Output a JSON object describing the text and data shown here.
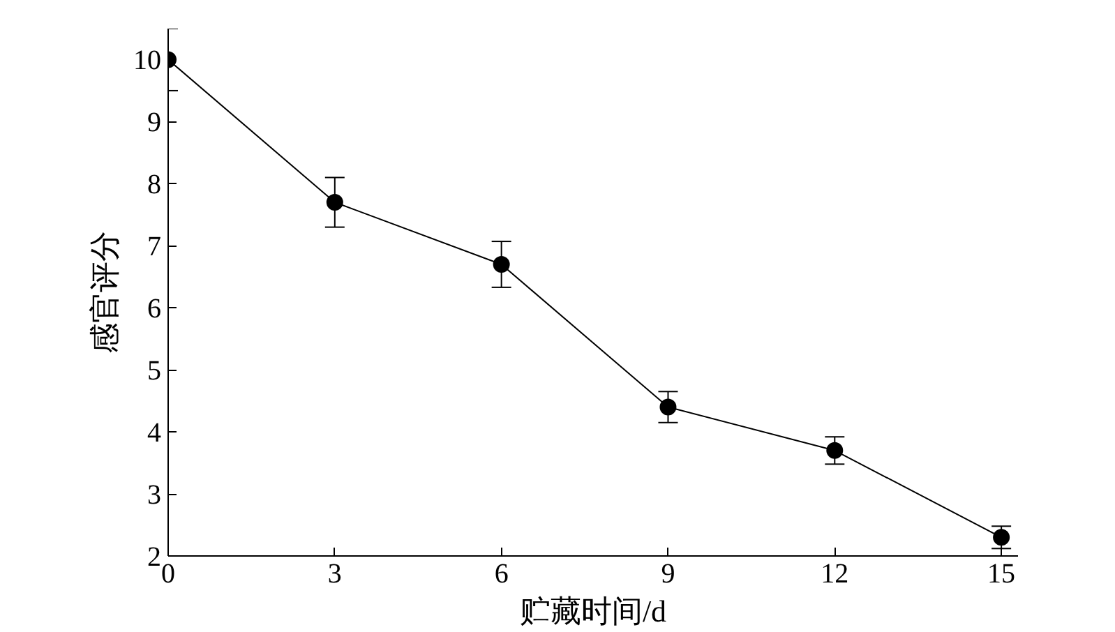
{
  "chart_data": {
    "type": "line",
    "xlabel": "贮藏时间/d",
    "ylabel": "感官评分",
    "x": [
      0,
      3,
      6,
      9,
      12,
      15
    ],
    "series": [
      {
        "color": "#000000",
        "values": [
          10.0,
          7.7,
          6.7,
          4.4,
          3.7,
          2.3
        ],
        "errors": [
          0.5,
          0.4,
          0.37,
          0.25,
          0.22,
          0.18
        ]
      }
    ],
    "xlim": [
      0,
      15.3
    ],
    "ylim": [
      2,
      10.5
    ],
    "xticks": [
      0,
      3,
      6,
      9,
      12,
      15
    ],
    "yticks": [
      2,
      3,
      4,
      5,
      6,
      7,
      8,
      9,
      10
    ],
    "grid": false,
    "marker": "circle",
    "line_style": "solid"
  }
}
